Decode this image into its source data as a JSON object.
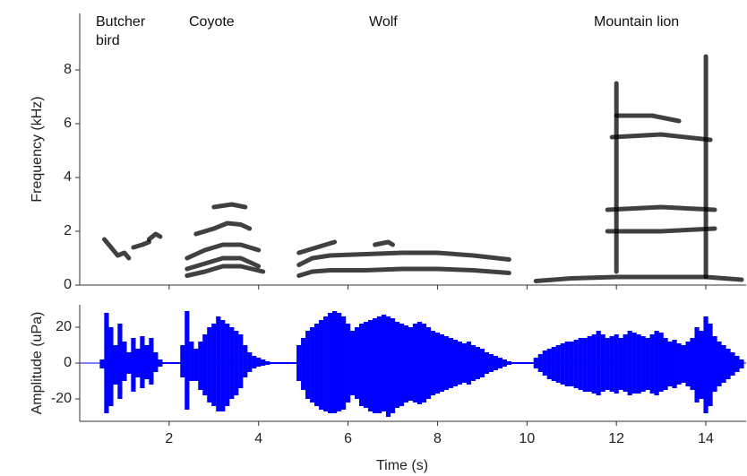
{
  "chart_data": [
    {
      "type": "spectrogram",
      "ylabel": "Frequency (kHz)",
      "annotations": [
        "Butcher bird",
        "Coyote",
        "Wolf",
        "Mountain lion"
      ],
      "xlim": [
        0,
        14.9
      ],
      "xticks": [
        2,
        4,
        6,
        8,
        10,
        12,
        14
      ],
      "ylim": [
        0,
        10.1
      ],
      "yticks": [
        0,
        2,
        4,
        6,
        8
      ],
      "color": "#000000",
      "traces": [
        {
          "x": [
            0.55,
            0.7,
            0.85,
            1.0,
            1.1
          ],
          "y": [
            1.7,
            1.4,
            1.1,
            1.2,
            1.0
          ]
        },
        {
          "x": [
            1.2,
            1.4,
            1.55
          ],
          "y": [
            1.4,
            1.5,
            1.6
          ]
        },
        {
          "x": [
            1.55,
            1.7,
            1.8
          ],
          "y": [
            1.7,
            1.9,
            1.8
          ]
        },
        {
          "x": [
            2.6,
            3.0,
            3.3,
            3.6,
            3.8
          ],
          "y": [
            1.9,
            2.1,
            2.3,
            2.25,
            2.1
          ]
        },
        {
          "x": [
            2.4,
            2.8,
            3.2,
            3.6,
            4.0
          ],
          "y": [
            1.0,
            1.3,
            1.5,
            1.5,
            1.3
          ]
        },
        {
          "x": [
            2.4,
            2.8,
            3.2,
            3.6,
            4.0
          ],
          "y": [
            0.6,
            0.8,
            1.0,
            1.0,
            0.7
          ]
        },
        {
          "x": [
            2.4,
            2.8,
            3.2,
            3.6,
            4.1
          ],
          "y": [
            0.35,
            0.5,
            0.7,
            0.7,
            0.5
          ]
        },
        {
          "x": [
            3.0,
            3.4,
            3.7
          ],
          "y": [
            2.9,
            3.0,
            2.9
          ]
        },
        {
          "x": [
            4.9,
            5.2,
            5.6,
            6.4,
            7.2,
            8.0,
            8.8,
            9.6
          ],
          "y": [
            0.35,
            0.5,
            0.55,
            0.55,
            0.6,
            0.6,
            0.55,
            0.45
          ]
        },
        {
          "x": [
            4.9,
            5.2,
            5.6,
            6.4,
            7.2,
            8.0,
            8.8,
            9.6
          ],
          "y": [
            0.75,
            1.0,
            1.1,
            1.15,
            1.2,
            1.2,
            1.1,
            0.95
          ]
        },
        {
          "x": [
            4.9,
            5.3,
            5.7
          ],
          "y": [
            1.2,
            1.4,
            1.6
          ]
        },
        {
          "x": [
            6.6,
            6.9,
            7.0
          ],
          "y": [
            1.5,
            1.6,
            1.5
          ]
        },
        {
          "x": [
            10.2,
            11,
            12,
            13,
            14,
            14.8
          ],
          "y": [
            0.15,
            0.25,
            0.3,
            0.3,
            0.3,
            0.2
          ]
        },
        {
          "x": [
            11.8,
            13,
            14.2
          ],
          "y": [
            2.0,
            2.0,
            2.1
          ]
        },
        {
          "x": [
            11.8,
            13,
            14.2
          ],
          "y": [
            2.8,
            2.9,
            2.8
          ]
        },
        {
          "x": [
            11.9,
            13,
            14.1
          ],
          "y": [
            5.5,
            5.6,
            5.4
          ]
        },
        {
          "x": [
            12.0,
            12.8,
            13.4
          ],
          "y": [
            6.3,
            6.3,
            6.1
          ]
        },
        {
          "x": [
            14.0,
            14.0
          ],
          "y": [
            0.3,
            8.5
          ]
        },
        {
          "x": [
            12.0,
            12.0
          ],
          "y": [
            0.5,
            7.5
          ]
        }
      ]
    },
    {
      "type": "waveform",
      "xlabel": "Time (s)",
      "ylabel": "Amplitude (uPa)",
      "xlim": [
        0,
        14.9
      ],
      "xticks": [
        2,
        4,
        6,
        8,
        10,
        12,
        14
      ],
      "ylim": [
        -32.5,
        32.5
      ],
      "yticks": [
        -20,
        0,
        20
      ],
      "color": "#0000ff",
      "x": [
        0.5,
        0.6,
        0.7,
        0.8,
        0.9,
        1.0,
        1.1,
        1.2,
        1.3,
        1.4,
        1.5,
        1.6,
        1.7,
        1.8,
        1.9,
        2.0,
        2.1,
        2.2,
        2.3,
        2.4,
        2.5,
        2.6,
        2.7,
        2.8,
        2.9,
        3.0,
        3.1,
        3.2,
        3.3,
        3.4,
        3.5,
        3.6,
        3.7,
        3.8,
        3.9,
        4.0,
        4.1,
        4.2,
        4.3,
        4.4,
        4.5,
        4.6,
        4.7,
        4.8,
        4.9,
        5.0,
        5.1,
        5.2,
        5.3,
        5.4,
        5.5,
        5.6,
        5.7,
        5.8,
        5.9,
        6.0,
        6.1,
        6.2,
        6.3,
        6.4,
        6.5,
        6.6,
        6.7,
        6.8,
        6.9,
        7.0,
        7.1,
        7.2,
        7.3,
        7.4,
        7.5,
        7.6,
        7.7,
        7.8,
        7.9,
        8.0,
        8.1,
        8.2,
        8.3,
        8.4,
        8.5,
        8.6,
        8.7,
        8.8,
        8.9,
        9.0,
        9.1,
        9.2,
        9.3,
        9.4,
        9.5,
        9.6,
        9.7,
        9.8,
        9.9,
        10.0,
        10.1,
        10.2,
        10.3,
        10.4,
        10.5,
        10.6,
        10.7,
        10.8,
        10.9,
        11.0,
        11.1,
        11.2,
        11.3,
        11.4,
        11.5,
        11.6,
        11.7,
        11.8,
        11.9,
        12.0,
        12.1,
        12.2,
        12.3,
        12.4,
        12.5,
        12.6,
        12.7,
        12.8,
        12.9,
        13.0,
        13.1,
        13.2,
        13.3,
        13.4,
        13.5,
        13.6,
        13.7,
        13.8,
        13.9,
        14.0,
        14.1,
        14.2,
        14.3,
        14.4,
        14.5,
        14.6,
        14.7,
        14.8
      ],
      "upper": [
        2,
        28,
        20,
        10,
        22,
        12,
        6,
        14,
        8,
        15,
        10,
        14,
        6,
        2,
        0.5,
        0.5,
        0.5,
        0.5,
        10,
        29,
        12,
        8,
        12,
        16,
        20,
        22,
        26,
        24,
        22,
        20,
        18,
        16,
        10,
        6,
        4,
        3,
        2,
        1,
        0.5,
        0.5,
        0.5,
        0.5,
        0.5,
        0.5,
        10,
        14,
        18,
        20,
        22,
        24,
        26,
        28,
        29,
        28,
        26,
        22,
        18,
        20,
        22,
        23,
        24,
        25,
        26,
        27,
        26,
        25,
        23,
        22,
        21,
        20,
        22,
        23,
        22,
        20,
        18,
        17,
        16,
        15,
        14,
        13,
        12,
        11,
        12,
        10,
        9,
        8,
        6,
        5,
        4,
        3,
        2,
        1,
        0.5,
        0.5,
        0.5,
        0.5,
        0.5,
        3,
        5,
        7,
        8,
        9,
        10,
        11,
        12,
        12,
        13,
        14,
        14,
        15,
        16,
        18,
        16,
        14,
        15,
        16,
        14,
        16,
        18,
        17,
        16,
        15,
        14,
        16,
        18,
        17,
        14,
        12,
        13,
        11,
        10,
        12,
        14,
        20,
        18,
        26,
        22,
        15,
        12,
        10,
        8,
        6,
        4,
        2
      ],
      "lower": [
        -3,
        -28,
        -24,
        -12,
        -20,
        -10,
        -6,
        -16,
        -8,
        -14,
        -9,
        -12,
        -5,
        -2,
        -0.5,
        -0.5,
        -0.5,
        -0.5,
        -8,
        -26,
        -10,
        -10,
        -15,
        -18,
        -22,
        -24,
        -27,
        -27,
        -24,
        -20,
        -18,
        -14,
        -8,
        -5,
        -3,
        -2,
        -1.5,
        -1,
        -0.5,
        -0.5,
        -0.5,
        -0.5,
        -0.5,
        -0.5,
        -10,
        -15,
        -20,
        -22,
        -24,
        -26,
        -27,
        -28,
        -28,
        -27,
        -26,
        -22,
        -18,
        -20,
        -24,
        -25,
        -27,
        -28,
        -28,
        -27,
        -30,
        -28,
        -25,
        -24,
        -22,
        -21,
        -22,
        -23,
        -22,
        -20,
        -18,
        -17,
        -16,
        -15,
        -14,
        -13,
        -12,
        -11,
        -12,
        -10,
        -9,
        -8,
        -6,
        -5,
        -4,
        -3,
        -2,
        -1,
        -0.5,
        -0.5,
        -0.5,
        -0.5,
        -0.5,
        -3,
        -5,
        -7,
        -9,
        -10,
        -11,
        -12,
        -13,
        -13,
        -14,
        -15,
        -16,
        -16,
        -17,
        -18,
        -16,
        -15,
        -16,
        -17,
        -15,
        -16,
        -18,
        -17,
        -17,
        -16,
        -15,
        -17,
        -18,
        -16,
        -15,
        -13,
        -14,
        -12,
        -11,
        -13,
        -15,
        -22,
        -20,
        -28,
        -24,
        -16,
        -13,
        -11,
        -9,
        -7,
        -5,
        -3
      ]
    }
  ]
}
